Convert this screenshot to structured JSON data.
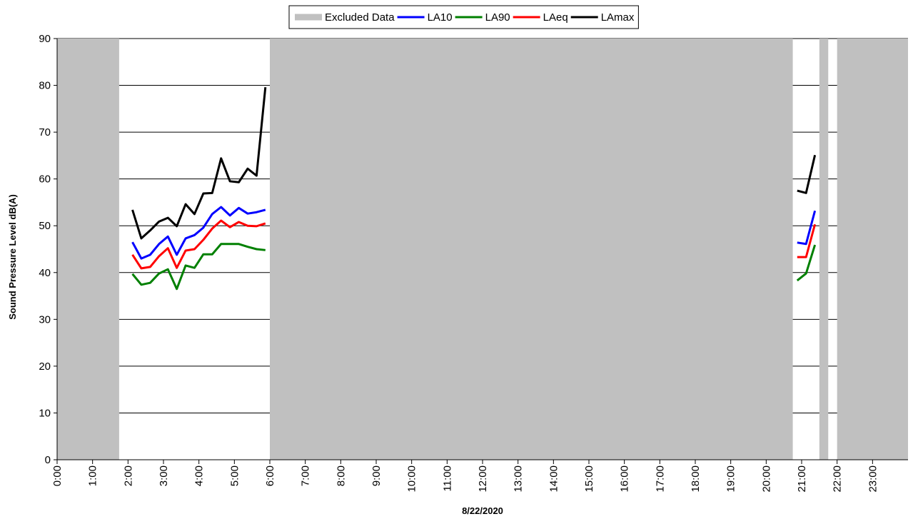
{
  "chart_data": {
    "type": "line",
    "x_label": "8/22/2020",
    "y_label": "Sound Pressure Level dB(A)",
    "xlim": [
      0,
      24
    ],
    "ylim": [
      0,
      90
    ],
    "xticks": [
      {
        "value": 0,
        "label": "0:00"
      },
      {
        "value": 1,
        "label": "1:00"
      },
      {
        "value": 2,
        "label": "2:00"
      },
      {
        "value": 3,
        "label": "3:00"
      },
      {
        "value": 4,
        "label": "4:00"
      },
      {
        "value": 5,
        "label": "5:00"
      },
      {
        "value": 6,
        "label": "6:00"
      },
      {
        "value": 7,
        "label": "7:00"
      },
      {
        "value": 8,
        "label": "8:00"
      },
      {
        "value": 9,
        "label": "9:00"
      },
      {
        "value": 10,
        "label": "10:00"
      },
      {
        "value": 11,
        "label": "11:00"
      },
      {
        "value": 12,
        "label": "12:00"
      },
      {
        "value": 13,
        "label": "13:00"
      },
      {
        "value": 14,
        "label": "14:00"
      },
      {
        "value": 15,
        "label": "15:00"
      },
      {
        "value": 16,
        "label": "16:00"
      },
      {
        "value": 17,
        "label": "17:00"
      },
      {
        "value": 18,
        "label": "18:00"
      },
      {
        "value": 19,
        "label": "19:00"
      },
      {
        "value": 20,
        "label": "20:00"
      },
      {
        "value": 21,
        "label": "21:00"
      },
      {
        "value": 22,
        "label": "22:00"
      },
      {
        "value": 23,
        "label": "23:00"
      }
    ],
    "yticks": [
      0,
      10,
      20,
      30,
      40,
      50,
      60,
      70,
      80,
      90
    ],
    "grid": true,
    "legend": "top",
    "excluded": {
      "name": "Excluded Data",
      "color": "#c0c0c0",
      "ranges": [
        [
          0,
          1.75
        ],
        [
          6,
          20.75
        ],
        [
          21.5,
          21.75
        ],
        [
          22,
          24
        ]
      ]
    },
    "x": [
      2.125,
      2.375,
      2.625,
      2.875,
      3.125,
      3.375,
      3.625,
      3.875,
      4.125,
      4.375,
      4.625,
      4.875,
      5.125,
      5.375,
      5.625,
      5.875,
      6.125,
      20.875,
      21.125,
      21.375
    ],
    "series": [
      {
        "name": "LA10",
        "color": "#0000ff",
        "values": [
          46.5,
          43,
          43.8,
          46.1,
          47.7,
          43.8,
          47.3,
          48,
          49.6,
          52.5,
          54,
          52.2,
          53.8,
          52.6,
          52.9,
          53.4,
          null,
          46.4,
          46.1,
          53.2
        ]
      },
      {
        "name": "LA90",
        "color": "#008000",
        "values": [
          39.7,
          37.4,
          37.8,
          39.8,
          40.7,
          36.5,
          41.5,
          41,
          43.9,
          43.9,
          46.1,
          46.1,
          46.1,
          45.5,
          45,
          44.8,
          null,
          38.3,
          39.8,
          45.9
        ]
      },
      {
        "name": "LAeq",
        "color": "#ff0000",
        "values": [
          43.8,
          40.9,
          41.2,
          43.5,
          45.2,
          41,
          44.7,
          45,
          47,
          49.4,
          51.1,
          49.7,
          50.8,
          50,
          49.9,
          50.5,
          null,
          43.3,
          43.3,
          50.3
        ]
      },
      {
        "name": "LAmax",
        "color": "#000000",
        "values": [
          53.4,
          47.3,
          49,
          50.9,
          51.7,
          49.9,
          54.6,
          52.5,
          56.9,
          57,
          64.4,
          59.5,
          59.3,
          62.2,
          60.7,
          79.6,
          null,
          57.5,
          57,
          65.1
        ]
      }
    ]
  }
}
